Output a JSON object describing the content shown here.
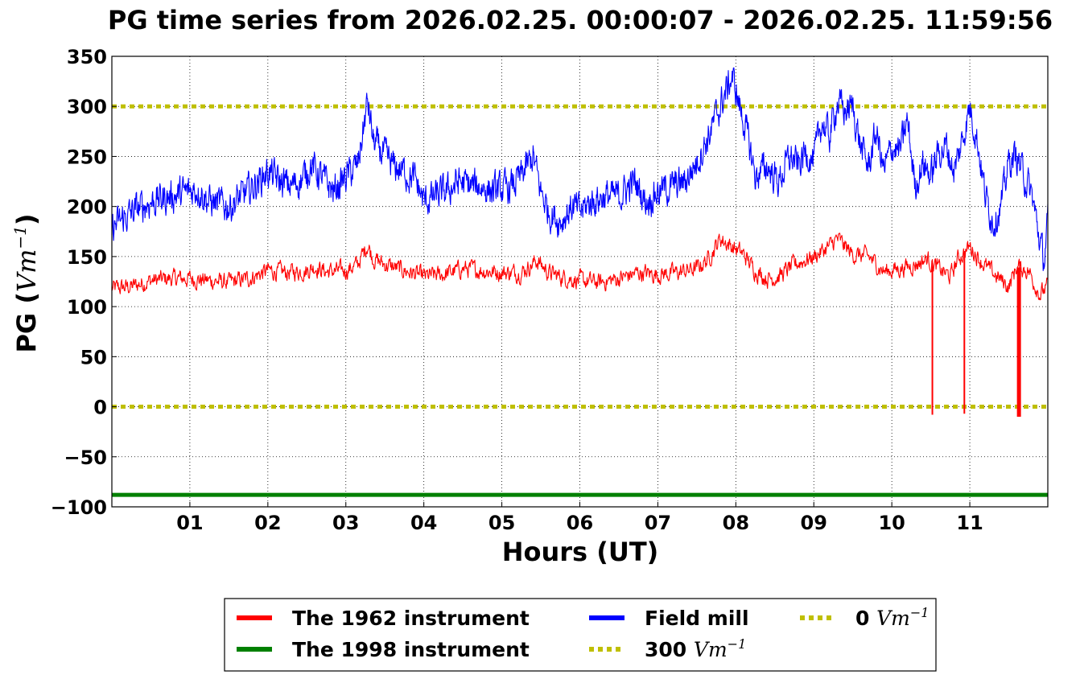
{
  "chart_data": {
    "type": "line",
    "title": "PG time series from 2026.02.25. 00:00:07 - 2026.02.25. 11:59:56",
    "xlabel": "Hours (UT)",
    "ylabel": {
      "main": "PG (",
      "unit": "Vm",
      "exp": "−1",
      "close": ")"
    },
    "xlim": [
      0,
      12
    ],
    "ylim": [
      -100,
      350
    ],
    "xticks": [
      1,
      2,
      3,
      4,
      5,
      6,
      7,
      8,
      9,
      10,
      11
    ],
    "xtick_labels": [
      "01",
      "02",
      "03",
      "04",
      "05",
      "06",
      "07",
      "08",
      "09",
      "10",
      "11"
    ],
    "yticks": [
      -100,
      -50,
      0,
      50,
      100,
      150,
      200,
      250,
      300,
      350
    ],
    "ytick_labels": [
      "−100",
      "−50",
      "0",
      "50",
      "100",
      "150",
      "200",
      "250",
      "300",
      "350"
    ],
    "grid": true,
    "legend_position": "bottom-center",
    "series": [
      {
        "name": "The 1962 instrument",
        "color": "#ff0000",
        "x": [
          0.0,
          0.25,
          0.5,
          0.75,
          1.0,
          1.25,
          1.5,
          1.75,
          2.0,
          2.25,
          2.5,
          2.6,
          2.75,
          3.0,
          3.15,
          3.28,
          3.35,
          3.5,
          3.75,
          4.0,
          4.25,
          4.5,
          4.75,
          5.0,
          5.25,
          5.45,
          5.6,
          5.75,
          6.0,
          6.25,
          6.5,
          6.75,
          7.0,
          7.25,
          7.5,
          7.65,
          7.8,
          7.95,
          8.1,
          8.25,
          8.4,
          8.55,
          8.75,
          9.0,
          9.2,
          9.3,
          9.5,
          9.7,
          9.9,
          10.1,
          10.3,
          10.45,
          10.6,
          10.75,
          10.85,
          11.0,
          11.2,
          11.35,
          11.5,
          11.6,
          11.75,
          11.9,
          12.0
        ],
        "y": [
          118,
          120,
          126,
          128,
          128,
          126,
          124,
          128,
          136,
          134,
          136,
          140,
          135,
          136,
          142,
          162,
          148,
          142,
          136,
          130,
          132,
          138,
          136,
          134,
          134,
          146,
          134,
          130,
          126,
          124,
          128,
          134,
          132,
          134,
          138,
          148,
          168,
          160,
          152,
          136,
          128,
          130,
          142,
          150,
          160,
          168,
          152,
          150,
          135,
          138,
          142,
          148,
          138,
          130,
          148,
          160,
          140,
          130,
          120,
          140,
          136,
          112,
          120
        ],
        "dropouts": [
          {
            "x": 10.52,
            "y_min": -8
          },
          {
            "x": 10.93,
            "y_min": -7
          },
          {
            "x": 11.63,
            "y_min": -10
          }
        ]
      },
      {
        "name": "The 1998 instrument",
        "color": "#008000",
        "x": [
          0,
          12
        ],
        "y": [
          -88,
          -88
        ]
      },
      {
        "name": "Field mill",
        "color": "#0000ff",
        "x": [
          0.0,
          0.15,
          0.3,
          0.5,
          0.75,
          1.0,
          1.1,
          1.25,
          1.5,
          1.75,
          2.0,
          2.15,
          2.3,
          2.45,
          2.55,
          2.7,
          2.85,
          3.0,
          3.15,
          3.28,
          3.35,
          3.5,
          3.6,
          3.75,
          3.9,
          4.0,
          4.15,
          4.3,
          4.45,
          4.6,
          4.75,
          4.9,
          5.1,
          5.25,
          5.4,
          5.5,
          5.6,
          5.75,
          5.9,
          6.0,
          6.15,
          6.3,
          6.5,
          6.7,
          6.85,
          7.0,
          7.2,
          7.35,
          7.5,
          7.65,
          7.8,
          7.95,
          8.05,
          8.15,
          8.25,
          8.4,
          8.55,
          8.7,
          8.8,
          8.9,
          9.0,
          9.1,
          9.2,
          9.3,
          9.4,
          9.5,
          9.6,
          9.7,
          9.8,
          9.9,
          10.0,
          10.1,
          10.2,
          10.3,
          10.4,
          10.5,
          10.6,
          10.7,
          10.8,
          10.9,
          11.0,
          11.1,
          11.2,
          11.3,
          11.4,
          11.5,
          11.6,
          11.7,
          11.8,
          11.9,
          11.95,
          12.0
        ],
        "y": [
          178,
          188,
          196,
          205,
          210,
          215,
          218,
          205,
          200,
          215,
          235,
          225,
          220,
          228,
          242,
          228,
          215,
          230,
          240,
          305,
          265,
          250,
          240,
          235,
          225,
          205,
          210,
          215,
          225,
          220,
          220,
          215,
          218,
          230,
          250,
          215,
          195,
          185,
          200,
          195,
          205,
          210,
          210,
          225,
          205,
          215,
          220,
          225,
          245,
          270,
          300,
          330,
          300,
          270,
          230,
          240,
          225,
          250,
          240,
          255,
          245,
          285,
          270,
          305,
          295,
          300,
          260,
          240,
          275,
          235,
          260,
          255,
          285,
          220,
          245,
          230,
          255,
          260,
          235,
          265,
          300,
          265,
          210,
          185,
          200,
          245,
          250,
          230,
          210,
          165,
          145,
          185
        ]
      }
    ],
    "reference_lines": [
      {
        "name": "300",
        "unit": "Vm",
        "exp": "−1",
        "value": 300,
        "color": "#bfbf00"
      },
      {
        "name": "0",
        "unit": "Vm",
        "exp": "−1",
        "value": 0,
        "color": "#bfbf00"
      }
    ]
  }
}
